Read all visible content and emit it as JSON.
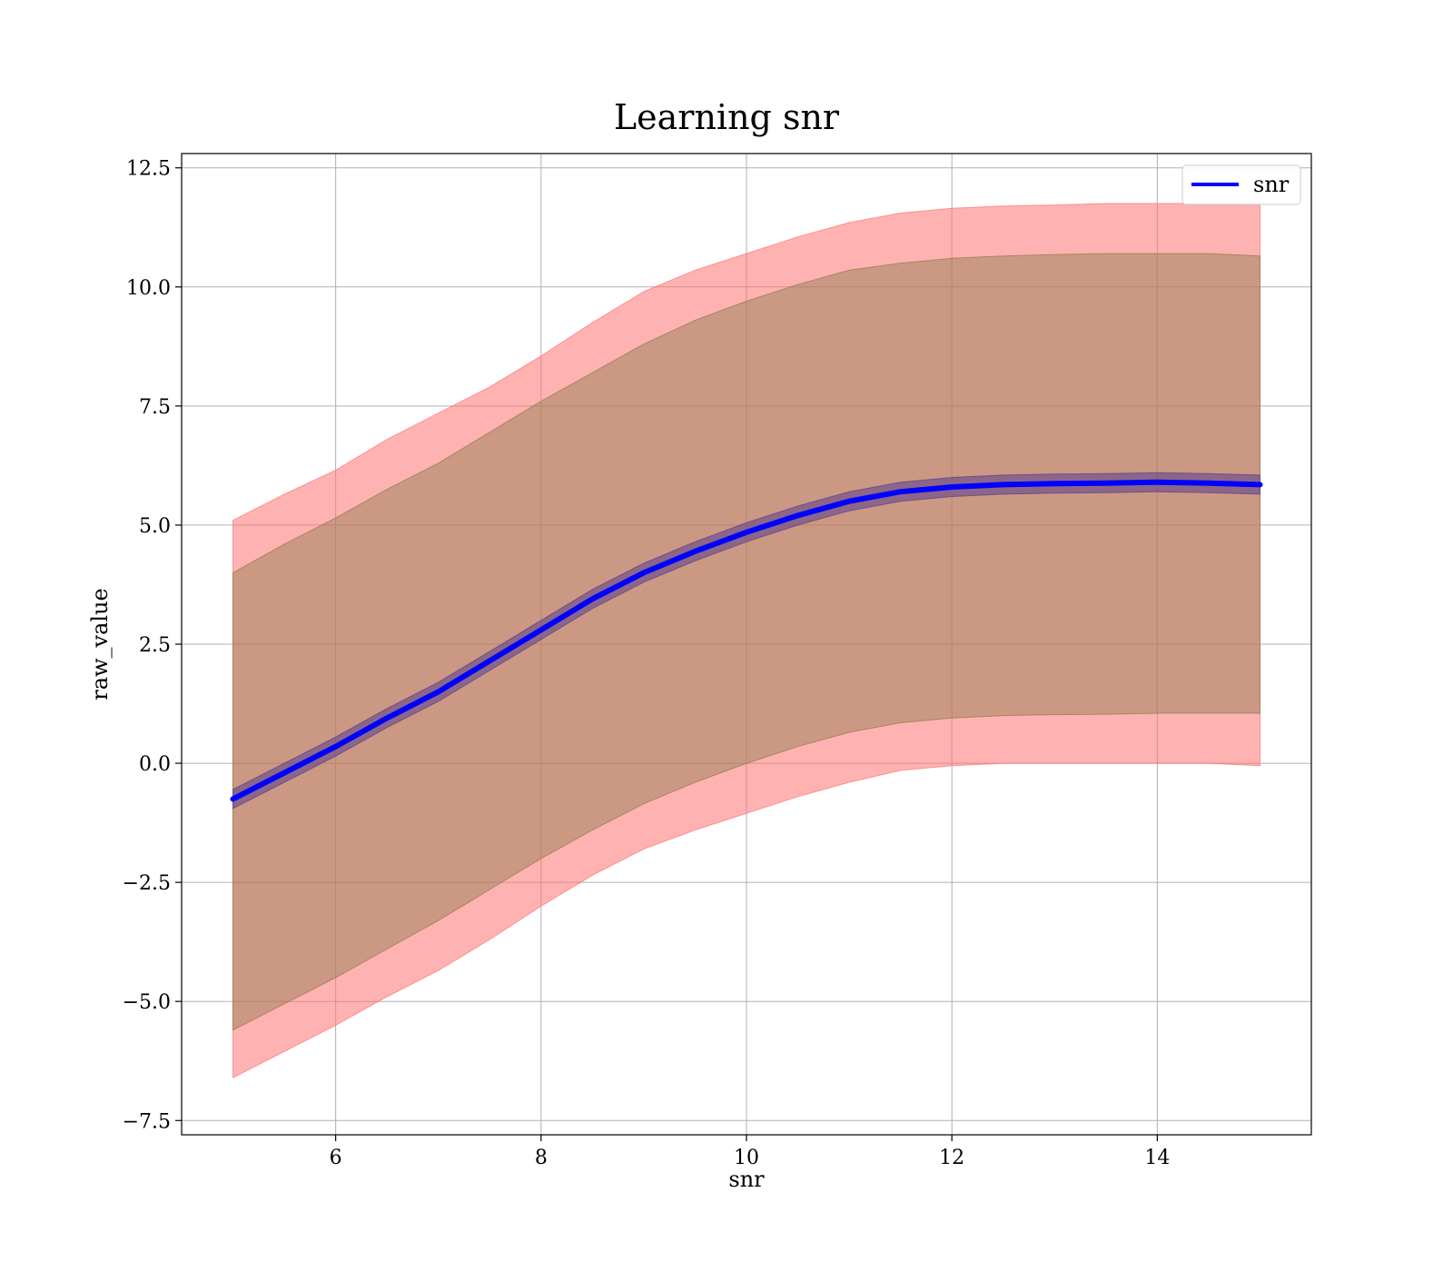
{
  "chart_data": {
    "type": "line",
    "title": "Learning snr",
    "xlabel": "snr",
    "ylabel": "raw_value",
    "xlim": [
      4.5,
      15.5
    ],
    "ylim": [
      -7.8,
      12.8
    ],
    "x_ticks": [
      6,
      8,
      10,
      12,
      14
    ],
    "x_tick_labels": [
      "6",
      "8",
      "10",
      "12",
      "14"
    ],
    "y_ticks": [
      -7.5,
      -5.0,
      -2.5,
      0.0,
      2.5,
      5.0,
      7.5,
      10.0,
      12.5
    ],
    "y_tick_labels": [
      "−7.5",
      "−5.0",
      "−2.5",
      "0.0",
      "2.5",
      "5.0",
      "7.5",
      "10.0",
      "12.5"
    ],
    "grid": true,
    "legend_position": "top-right",
    "legend": [
      {
        "label": "snr",
        "color": "#0000ff"
      }
    ],
    "series": [
      {
        "name": "snr",
        "color": "#0000ff",
        "x": [
          5.0,
          5.5,
          6.0,
          6.5,
          7.0,
          7.5,
          8.0,
          8.5,
          9.0,
          9.5,
          10.0,
          10.5,
          11.0,
          11.5,
          12.0,
          12.5,
          13.0,
          13.5,
          14.0,
          14.5,
          15.0
        ],
        "y": [
          -0.75,
          -0.2,
          0.35,
          0.95,
          1.5,
          2.15,
          2.8,
          3.45,
          4.0,
          4.45,
          4.85,
          5.2,
          5.5,
          5.7,
          5.8,
          5.85,
          5.87,
          5.88,
          5.9,
          5.88,
          5.85
        ]
      }
    ],
    "bands": [
      {
        "color": "#ff7373",
        "opacity": 0.55,
        "x": [
          5.0,
          5.5,
          6.0,
          6.5,
          7.0,
          7.5,
          8.0,
          8.5,
          9.0,
          9.5,
          10.0,
          10.5,
          11.0,
          11.5,
          12.0,
          12.5,
          13.0,
          13.5,
          14.0,
          14.5,
          15.0
        ],
        "upper": [
          5.1,
          5.65,
          6.15,
          6.8,
          7.35,
          7.9,
          8.55,
          9.25,
          9.9,
          10.35,
          10.7,
          11.05,
          11.35,
          11.55,
          11.65,
          11.7,
          11.72,
          11.75,
          11.75,
          11.75,
          11.75
        ],
        "lower": [
          -6.6,
          -6.05,
          -5.5,
          -4.9,
          -4.35,
          -3.7,
          -3.0,
          -2.35,
          -1.8,
          -1.4,
          -1.05,
          -0.7,
          -0.4,
          -0.15,
          -0.05,
          0.0,
          0.0,
          0.0,
          0.0,
          0.0,
          -0.05
        ]
      },
      {
        "color": "#8c7a4a",
        "opacity": 0.45,
        "x": [
          5.0,
          5.5,
          6.0,
          6.5,
          7.0,
          7.5,
          8.0,
          8.5,
          9.0,
          9.5,
          10.0,
          10.5,
          11.0,
          11.5,
          12.0,
          12.5,
          13.0,
          13.5,
          14.0,
          14.5,
          15.0
        ],
        "upper": [
          4.0,
          4.6,
          5.15,
          5.75,
          6.3,
          6.95,
          7.6,
          8.2,
          8.8,
          9.3,
          9.7,
          10.05,
          10.35,
          10.5,
          10.6,
          10.65,
          10.68,
          10.7,
          10.7,
          10.7,
          10.65
        ],
        "lower": [
          -5.6,
          -5.05,
          -4.5,
          -3.9,
          -3.3,
          -2.65,
          -2.0,
          -1.4,
          -0.85,
          -0.4,
          0.0,
          0.35,
          0.65,
          0.85,
          0.95,
          1.0,
          1.02,
          1.03,
          1.05,
          1.05,
          1.05
        ]
      },
      {
        "color": "#5a3c8c",
        "opacity": 0.55,
        "x": [
          5.0,
          5.5,
          6.0,
          6.5,
          7.0,
          7.5,
          8.0,
          8.5,
          9.0,
          9.5,
          10.0,
          10.5,
          11.0,
          11.5,
          12.0,
          12.5,
          13.0,
          13.5,
          14.0,
          14.5,
          15.0
        ],
        "upper": [
          -0.55,
          0.0,
          0.55,
          1.15,
          1.7,
          2.35,
          3.0,
          3.65,
          4.2,
          4.65,
          5.05,
          5.4,
          5.7,
          5.9,
          6.0,
          6.05,
          6.07,
          6.08,
          6.1,
          6.08,
          6.05
        ],
        "lower": [
          -0.95,
          -0.4,
          0.15,
          0.75,
          1.3,
          1.95,
          2.6,
          3.25,
          3.8,
          4.25,
          4.65,
          5.0,
          5.3,
          5.5,
          5.6,
          5.65,
          5.67,
          5.68,
          5.7,
          5.68,
          5.65
        ]
      }
    ]
  }
}
